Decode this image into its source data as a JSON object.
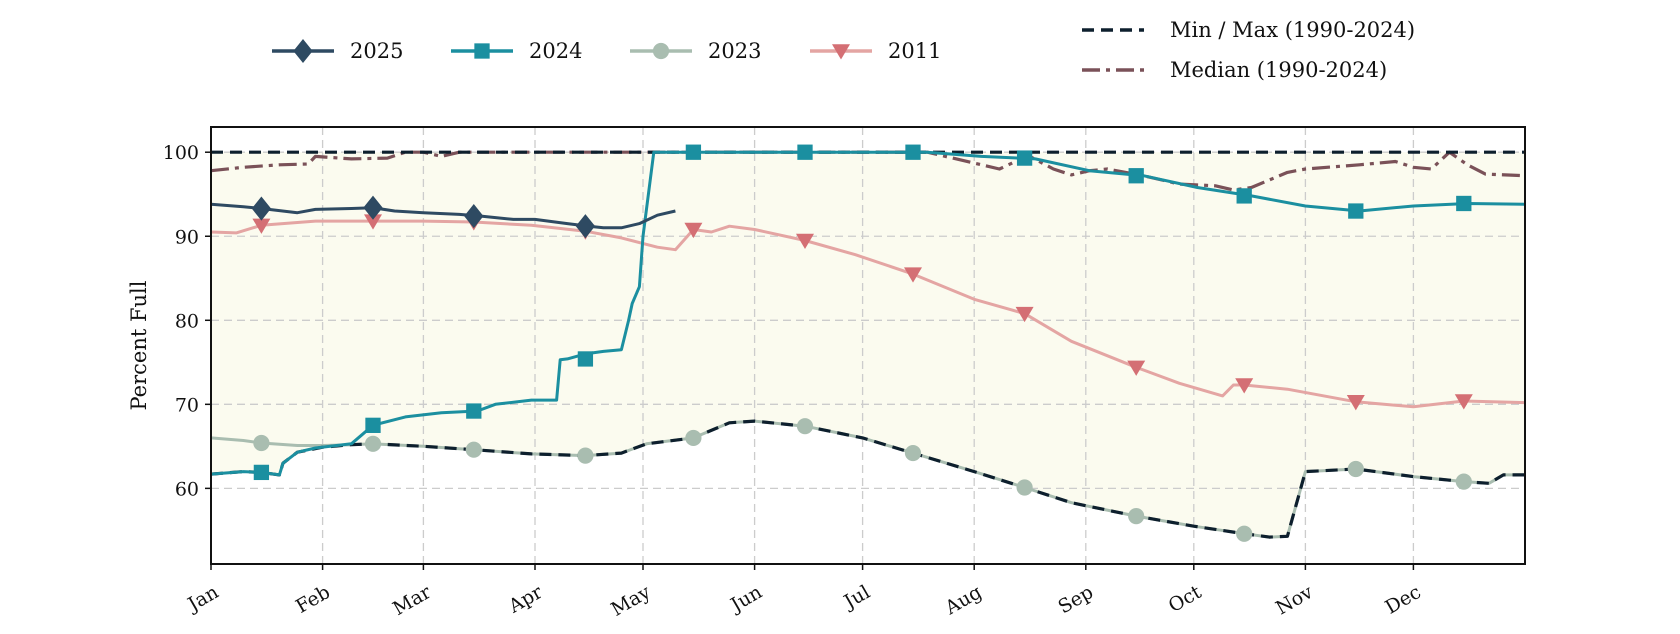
{
  "chart_data": {
    "type": "line",
    "title": "",
    "xlabel": "",
    "ylabel": "Percent Full",
    "ylim": [
      51,
      103
    ],
    "xlim": [
      1,
      366
    ],
    "grid": true,
    "legend_position": "top",
    "x_unit": "day of year",
    "x_ticks": [
      {
        "day": 1,
        "label": "Jan"
      },
      {
        "day": 32,
        "label": "Feb"
      },
      {
        "day": 60,
        "label": "Mar"
      },
      {
        "day": 91,
        "label": "Apr"
      },
      {
        "day": 121,
        "label": "May"
      },
      {
        "day": 152,
        "label": "Jun"
      },
      {
        "day": 182,
        "label": "Jul"
      },
      {
        "day": 213,
        "label": "Aug"
      },
      {
        "day": 244,
        "label": "Sep"
      },
      {
        "day": 274,
        "label": "Oct"
      },
      {
        "day": 305,
        "label": "Nov"
      },
      {
        "day": 335,
        "label": "Dec"
      }
    ],
    "y_ticks": [
      60,
      70,
      80,
      90,
      100
    ],
    "fill_between": {
      "color": "#fbfbef",
      "lower": "Min (1990-2024)",
      "upper": "Max (1990-2024)"
    },
    "series": [
      {
        "name": "2025",
        "color": "#2e4a62",
        "marker": "diamond",
        "style": "solid",
        "x": [
          1,
          10,
          15,
          25,
          30,
          40,
          46,
          52,
          60,
          70,
          76,
          85,
          91,
          100,
          106,
          110,
          115,
          120,
          125,
          130
        ],
        "y": [
          93.8,
          93.5,
          93.3,
          92.8,
          93.2,
          93.3,
          93.4,
          93.0,
          92.8,
          92.6,
          92.4,
          92.0,
          92.0,
          91.5,
          91.2,
          91.0,
          91.0,
          91.5,
          92.5,
          93.0
        ],
        "marker_x": [
          15,
          46,
          74,
          105
        ],
        "marker_y": [
          93.3,
          93.4,
          92.4,
          91.2
        ]
      },
      {
        "name": "2024",
        "color": "#1b8fa0",
        "marker": "square",
        "style": "solid",
        "x": [
          1,
          10,
          15,
          20,
          21,
          25,
          30,
          40,
          46,
          55,
          65,
          75,
          80,
          90,
          97,
          98,
          100,
          105,
          110,
          115,
          117,
          118,
          120,
          121,
          124,
          135,
          150,
          165,
          180,
          200,
          215,
          230,
          245,
          260,
          275,
          290,
          305,
          320,
          335,
          350,
          366
        ],
        "y": [
          61.7,
          62.0,
          61.9,
          61.6,
          63.0,
          64.3,
          64.8,
          65.3,
          67.5,
          68.5,
          69.0,
          69.2,
          70.0,
          70.5,
          70.5,
          75.3,
          75.4,
          76.0,
          76.3,
          76.5,
          80.0,
          82.0,
          84.0,
          90.0,
          100.0,
          100.0,
          100.0,
          100.0,
          100.0,
          100.0,
          99.5,
          99.2,
          97.8,
          97.2,
          95.8,
          94.8,
          93.6,
          93.0,
          93.6,
          93.9,
          93.8
        ],
        "marker_x": [
          15,
          46,
          74,
          105,
          135,
          166,
          196,
          227,
          258,
          288,
          319,
          349
        ],
        "marker_y": [
          61.9,
          67.5,
          69.2,
          75.4,
          100,
          100,
          100,
          99.3,
          97.2,
          94.8,
          93.0,
          93.9
        ]
      },
      {
        "name": "2023",
        "color": "#a9bdb0",
        "marker": "circle",
        "style": "solid",
        "x": [
          1,
          10,
          15,
          25,
          32,
          40,
          46,
          60,
          74,
          90,
          105,
          115,
          122,
          135,
          145,
          152,
          166,
          182,
          196,
          213,
          227,
          240,
          258,
          274,
          288,
          295,
          300,
          305,
          319,
          335,
          349,
          356,
          360,
          366
        ],
        "y": [
          66.0,
          65.7,
          65.4,
          65.1,
          65.1,
          65.2,
          65.3,
          65.0,
          64.6,
          64.1,
          63.9,
          64.2,
          65.3,
          66.0,
          67.8,
          68.0,
          67.4,
          66.0,
          64.2,
          62.0,
          60.1,
          58.3,
          56.7,
          55.5,
          54.6,
          54.2,
          54.3,
          62.0,
          62.3,
          61.4,
          60.8,
          60.6,
          61.6,
          61.6
        ],
        "marker_x": [
          15,
          46,
          74,
          105,
          135,
          166,
          196,
          227,
          258,
          288,
          319,
          349
        ],
        "marker_y": [
          65.4,
          65.3,
          64.6,
          63.9,
          66.0,
          67.4,
          64.2,
          60.1,
          56.7,
          54.6,
          62.3,
          60.8
        ]
      },
      {
        "name": "2011",
        "color": "#e4a5a3",
        "marker_color": "#d46f74",
        "marker": "triangle-down",
        "style": "solid",
        "x": [
          1,
          8,
          15,
          30,
          46,
          60,
          74,
          90,
          105,
          115,
          125,
          130,
          135,
          140,
          145,
          152,
          166,
          180,
          196,
          213,
          227,
          240,
          258,
          270,
          282,
          285,
          288,
          300,
          319,
          335,
          349,
          366
        ],
        "y": [
          90.5,
          90.4,
          91.3,
          91.8,
          91.8,
          91.8,
          91.7,
          91.3,
          90.6,
          89.8,
          88.7,
          88.4,
          90.8,
          90.5,
          91.2,
          90.8,
          89.5,
          87.8,
          85.5,
          82.5,
          80.8,
          77.5,
          74.4,
          72.5,
          71.0,
          72.3,
          72.3,
          71.8,
          70.3,
          69.7,
          70.4,
          70.2
        ],
        "marker_x": [
          15,
          46,
          74,
          105,
          135,
          166,
          196,
          227,
          258,
          288,
          319,
          349
        ],
        "marker_y": [
          91.3,
          91.8,
          91.7,
          90.6,
          90.8,
          89.5,
          85.5,
          80.8,
          74.4,
          72.3,
          70.3,
          70.4
        ]
      },
      {
        "name": "Min (1990-2024)",
        "legend_name": "Min / Max (1990-2024)",
        "color": "#0d1f2d",
        "marker": "none",
        "style": "dashed",
        "x": [
          1,
          10,
          15,
          20,
          21,
          25,
          32,
          40,
          46,
          60,
          74,
          90,
          105,
          115,
          122,
          135,
          145,
          152,
          166,
          182,
          196,
          213,
          227,
          240,
          258,
          274,
          288,
          295,
          300,
          305,
          319,
          335,
          349,
          356,
          360,
          366
        ],
        "y": [
          61.7,
          62.0,
          61.9,
          61.6,
          63.0,
          64.3,
          64.9,
          65.2,
          65.3,
          65.0,
          64.6,
          64.1,
          63.9,
          64.2,
          65.3,
          66.0,
          67.8,
          68.0,
          67.4,
          66.0,
          64.2,
          62.0,
          60.1,
          58.3,
          56.7,
          55.5,
          54.6,
          54.2,
          54.3,
          62.0,
          62.3,
          61.4,
          60.8,
          60.6,
          61.6,
          61.6
        ]
      },
      {
        "name": "Max (1990-2024)",
        "legend_name": "Min / Max (1990-2024)",
        "color": "#0d1f2d",
        "marker": "none",
        "style": "dashed",
        "x": [
          1,
          366
        ],
        "y": [
          100,
          100
        ]
      },
      {
        "name": "Median (1990-2024)",
        "color": "#7a5158",
        "marker": "none",
        "style": "dashdot",
        "x": [
          1,
          10,
          20,
          28,
          30,
          40,
          50,
          55,
          60,
          65,
          70,
          75,
          80,
          100,
          150,
          200,
          210,
          220,
          228,
          235,
          240,
          245,
          250,
          260,
          270,
          280,
          285,
          290,
          300,
          305,
          320,
          330,
          335,
          340,
          345,
          350,
          355,
          366
        ],
        "y": [
          97.8,
          98.2,
          98.5,
          98.6,
          99.5,
          99.2,
          99.3,
          100,
          100,
          99.5,
          100,
          100,
          100,
          100,
          100,
          100,
          99.0,
          98.0,
          99.6,
          98.0,
          97.3,
          97.8,
          98.0,
          97.2,
          96.2,
          96.0,
          95.5,
          95.8,
          97.6,
          98.0,
          98.5,
          98.9,
          98.2,
          98.0,
          100,
          98.5,
          97.4,
          97.2
        ]
      }
    ],
    "legend": [
      {
        "label": "2025",
        "series": "2025"
      },
      {
        "label": "2024",
        "series": "2024"
      },
      {
        "label": "2023",
        "series": "2023"
      },
      {
        "label": "2011",
        "series": "2011"
      },
      {
        "label": "Min / Max (1990-2024)",
        "series": "Max (1990-2024)"
      },
      {
        "label": "Median (1990-2024)",
        "series": "Median (1990-2024)"
      }
    ]
  }
}
